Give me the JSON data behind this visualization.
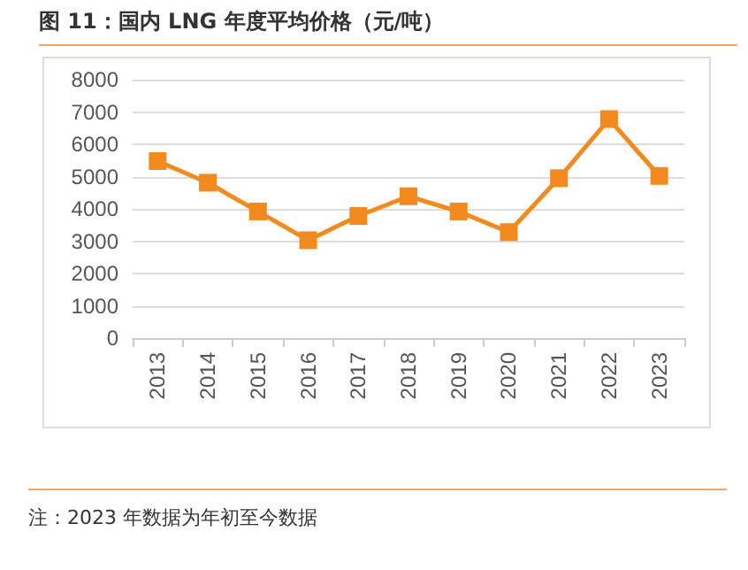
{
  "chart_data": {
    "type": "line",
    "title": "图 11：国内 LNG 年度平均价格（元/吨）",
    "categories": [
      "2013",
      "2014",
      "2015",
      "2016",
      "2017",
      "2018",
      "2019",
      "2020",
      "2021",
      "2022",
      "2023"
    ],
    "series": [
      {
        "color": "#f28a1e",
        "values": [
          5480,
          4810,
          3920,
          3030,
          3780,
          4390,
          3920,
          3280,
          4950,
          6780,
          5020
        ]
      }
    ],
    "ylim": [
      0,
      8000
    ],
    "yticks": [
      0,
      1000,
      2000,
      3000,
      4000,
      5000,
      6000,
      7000,
      8000
    ],
    "grid": "y",
    "marker": "square",
    "line_style": "solid",
    "annotations": [
      "注：2023 年数据为年初至今数据"
    ]
  }
}
